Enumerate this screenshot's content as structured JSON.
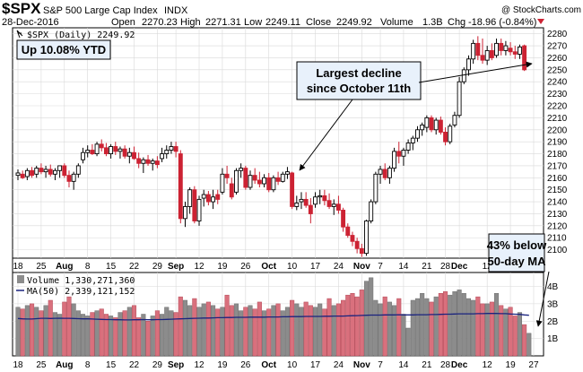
{
  "header": {
    "symbol": "$SPX",
    "name": "S&P 500 Large Cap Index",
    "exchange": "INDX",
    "date": "28-Dec-2016",
    "open_label": "Open",
    "open": "2270.23",
    "high_label": "High",
    "high": "2271.31",
    "low_label": "Low",
    "low": "2249.11",
    "close_label": "Close",
    "close": "2249.92",
    "volume_label": "Volume",
    "volume": "1.3B",
    "chg_label": "Chg",
    "chg": "-18.96 (-0.84%)",
    "credit": "@ StockCharts.com"
  },
  "legend": {
    "price": "$SPX (Daily) 2249.92",
    "volume": "Volume 1,330,271,360",
    "ma": "MA(50) 2,339,121,152"
  },
  "annotations": {
    "ytd": "Up 10.08% YTD",
    "decline_line1": "Largest decline",
    "decline_line2": "since October 11th",
    "below_line1": "43% below",
    "below_line2": "50-day MA"
  },
  "colors": {
    "up": "#000000",
    "down": "#cc2233",
    "vol_up": "#8c8c8c",
    "vol_down": "#d9707d",
    "ma": "#1a237e",
    "grid": "#d9d9d9",
    "marker": "#cc2233"
  },
  "chart_data": [
    {
      "type": "candlestick",
      "title": "$SPX (Daily) 2249.92",
      "ylim": [
        2093,
        2285
      ],
      "y_ticks": [
        2100,
        2110,
        2120,
        2130,
        2140,
        2150,
        2160,
        2170,
        2180,
        2190,
        2200,
        2210,
        2220,
        2230,
        2240,
        2250,
        2260,
        2270,
        2280
      ],
      "x_tick_labels": [
        {
          "label": "18",
          "i": 0
        },
        {
          "label": "25",
          "i": 5
        },
        {
          "label": "Aug",
          "i": 10,
          "bold": true
        },
        {
          "label": "8",
          "i": 15
        },
        {
          "label": "15",
          "i": 20
        },
        {
          "label": "22",
          "i": 25
        },
        {
          "label": "29",
          "i": 30
        },
        {
          "label": "Sep",
          "i": 34,
          "bold": true
        },
        {
          "label": "12",
          "i": 39
        },
        {
          "label": "19",
          "i": 44
        },
        {
          "label": "26",
          "i": 49
        },
        {
          "label": "Oct",
          "i": 54,
          "bold": true
        },
        {
          "label": "10",
          "i": 59
        },
        {
          "label": "17",
          "i": 64
        },
        {
          "label": "24",
          "i": 69
        },
        {
          "label": "Nov",
          "i": 74,
          "bold": true
        },
        {
          "label": "7",
          "i": 78
        },
        {
          "label": "14",
          "i": 83
        },
        {
          "label": "21",
          "i": 88
        },
        {
          "label": "28",
          "i": 92
        },
        {
          "label": "Dec",
          "i": 95,
          "bold": true
        },
        {
          "label": "12",
          "i": 101
        },
        {
          "label": "19",
          "i": 106
        },
        {
          "label": "27",
          "i": 111
        }
      ],
      "candles": [
        {
          "o": 2162,
          "h": 2167,
          "l": 2158,
          "c": 2164
        },
        {
          "o": 2163,
          "h": 2166,
          "l": 2159,
          "c": 2160
        },
        {
          "o": 2161,
          "h": 2168,
          "l": 2158,
          "c": 2166
        },
        {
          "o": 2166,
          "h": 2169,
          "l": 2160,
          "c": 2162
        },
        {
          "o": 2163,
          "h": 2170,
          "l": 2160,
          "c": 2168
        },
        {
          "o": 2168,
          "h": 2172,
          "l": 2163,
          "c": 2165
        },
        {
          "o": 2165,
          "h": 2170,
          "l": 2160,
          "c": 2167
        },
        {
          "o": 2167,
          "h": 2171,
          "l": 2161,
          "c": 2163
        },
        {
          "o": 2163,
          "h": 2168,
          "l": 2158,
          "c": 2166
        },
        {
          "o": 2166,
          "h": 2169,
          "l": 2160,
          "c": 2170
        },
        {
          "o": 2170,
          "h": 2172,
          "l": 2160,
          "c": 2162
        },
        {
          "o": 2162,
          "h": 2166,
          "l": 2152,
          "c": 2157
        },
        {
          "o": 2157,
          "h": 2165,
          "l": 2150,
          "c": 2163
        },
        {
          "o": 2163,
          "h": 2172,
          "l": 2160,
          "c": 2170
        },
        {
          "o": 2175,
          "h": 2185,
          "l": 2172,
          "c": 2181
        },
        {
          "o": 2181,
          "h": 2187,
          "l": 2177,
          "c": 2183
        },
        {
          "o": 2183,
          "h": 2188,
          "l": 2179,
          "c": 2180
        },
        {
          "o": 2180,
          "h": 2190,
          "l": 2178,
          "c": 2188
        },
        {
          "o": 2188,
          "h": 2192,
          "l": 2182,
          "c": 2185
        },
        {
          "o": 2185,
          "h": 2189,
          "l": 2178,
          "c": 2180
        },
        {
          "o": 2180,
          "h": 2188,
          "l": 2176,
          "c": 2186
        },
        {
          "o": 2186,
          "h": 2190,
          "l": 2179,
          "c": 2182
        },
        {
          "o": 2182,
          "h": 2186,
          "l": 2176,
          "c": 2184
        },
        {
          "o": 2184,
          "h": 2187,
          "l": 2176,
          "c": 2178
        },
        {
          "o": 2178,
          "h": 2185,
          "l": 2172,
          "c": 2181
        },
        {
          "o": 2181,
          "h": 2186,
          "l": 2175,
          "c": 2176
        },
        {
          "o": 2176,
          "h": 2181,
          "l": 2168,
          "c": 2172
        },
        {
          "o": 2172,
          "h": 2177,
          "l": 2164,
          "c": 2175
        },
        {
          "o": 2175,
          "h": 2179,
          "l": 2170,
          "c": 2172
        },
        {
          "o": 2172,
          "h": 2176,
          "l": 2166,
          "c": 2174
        },
        {
          "o": 2174,
          "h": 2178,
          "l": 2168,
          "c": 2171
        },
        {
          "o": 2176,
          "h": 2185,
          "l": 2173,
          "c": 2180
        },
        {
          "o": 2180,
          "h": 2187,
          "l": 2176,
          "c": 2183
        },
        {
          "o": 2183,
          "h": 2190,
          "l": 2180,
          "c": 2186
        },
        {
          "o": 2186,
          "h": 2190,
          "l": 2177,
          "c": 2182
        },
        {
          "o": 2180,
          "h": 2183,
          "l": 2122,
          "c": 2126
        },
        {
          "o": 2126,
          "h": 2140,
          "l": 2119,
          "c": 2136
        },
        {
          "o": 2136,
          "h": 2152,
          "l": 2130,
          "c": 2150
        },
        {
          "o": 2150,
          "h": 2153,
          "l": 2122,
          "c": 2124
        },
        {
          "o": 2124,
          "h": 2145,
          "l": 2120,
          "c": 2142
        },
        {
          "o": 2143,
          "h": 2150,
          "l": 2136,
          "c": 2146
        },
        {
          "o": 2146,
          "h": 2149,
          "l": 2137,
          "c": 2140
        },
        {
          "o": 2140,
          "h": 2150,
          "l": 2134,
          "c": 2144
        },
        {
          "o": 2146,
          "h": 2150,
          "l": 2138,
          "c": 2142
        },
        {
          "o": 2148,
          "h": 2168,
          "l": 2146,
          "c": 2163
        },
        {
          "o": 2163,
          "h": 2170,
          "l": 2155,
          "c": 2160
        },
        {
          "o": 2155,
          "h": 2160,
          "l": 2142,
          "c": 2144
        },
        {
          "o": 2148,
          "h": 2168,
          "l": 2146,
          "c": 2166
        },
        {
          "o": 2166,
          "h": 2172,
          "l": 2160,
          "c": 2168
        },
        {
          "o": 2168,
          "h": 2170,
          "l": 2150,
          "c": 2152
        },
        {
          "o": 2152,
          "h": 2166,
          "l": 2150,
          "c": 2162
        },
        {
          "o": 2162,
          "h": 2168,
          "l": 2155,
          "c": 2158
        },
        {
          "o": 2158,
          "h": 2165,
          "l": 2152,
          "c": 2155
        },
        {
          "o": 2155,
          "h": 2163,
          "l": 2152,
          "c": 2160
        },
        {
          "o": 2160,
          "h": 2164,
          "l": 2148,
          "c": 2150
        },
        {
          "o": 2150,
          "h": 2162,
          "l": 2148,
          "c": 2160
        },
        {
          "o": 2160,
          "h": 2165,
          "l": 2154,
          "c": 2157
        },
        {
          "o": 2157,
          "h": 2165,
          "l": 2156,
          "c": 2163
        },
        {
          "o": 2163,
          "h": 2169,
          "l": 2159,
          "c": 2165
        },
        {
          "o": 2164,
          "h": 2165,
          "l": 2134,
          "c": 2136
        },
        {
          "o": 2136,
          "h": 2145,
          "l": 2133,
          "c": 2139
        },
        {
          "o": 2140,
          "h": 2148,
          "l": 2134,
          "c": 2142
        },
        {
          "o": 2142,
          "h": 2148,
          "l": 2135,
          "c": 2137
        },
        {
          "o": 2137,
          "h": 2143,
          "l": 2122,
          "c": 2130
        },
        {
          "o": 2138,
          "h": 2148,
          "l": 2135,
          "c": 2144
        },
        {
          "o": 2144,
          "h": 2150,
          "l": 2138,
          "c": 2145
        },
        {
          "o": 2145,
          "h": 2150,
          "l": 2137,
          "c": 2141
        },
        {
          "o": 2141,
          "h": 2147,
          "l": 2134,
          "c": 2136
        },
        {
          "o": 2136,
          "h": 2142,
          "l": 2129,
          "c": 2138
        },
        {
          "o": 2138,
          "h": 2145,
          "l": 2130,
          "c": 2133
        },
        {
          "o": 2133,
          "h": 2135,
          "l": 2115,
          "c": 2119
        },
        {
          "o": 2119,
          "h": 2122,
          "l": 2110,
          "c": 2112
        },
        {
          "o": 2112,
          "h": 2115,
          "l": 2103,
          "c": 2107
        },
        {
          "o": 2107,
          "h": 2110,
          "l": 2097,
          "c": 2101
        },
        {
          "o": 2101,
          "h": 2105,
          "l": 2094,
          "c": 2097
        },
        {
          "o": 2097,
          "h": 2125,
          "l": 2095,
          "c": 2124
        },
        {
          "o": 2124,
          "h": 2142,
          "l": 2122,
          "c": 2140
        },
        {
          "o": 2140,
          "h": 2165,
          "l": 2138,
          "c": 2163
        },
        {
          "o": 2163,
          "h": 2170,
          "l": 2155,
          "c": 2167
        },
        {
          "o": 2167,
          "h": 2172,
          "l": 2158,
          "c": 2160
        },
        {
          "o": 2160,
          "h": 2170,
          "l": 2155,
          "c": 2168
        },
        {
          "o": 2168,
          "h": 2185,
          "l": 2165,
          "c": 2182
        },
        {
          "o": 2182,
          "h": 2190,
          "l": 2172,
          "c": 2178
        },
        {
          "o": 2178,
          "h": 2185,
          "l": 2170,
          "c": 2183
        },
        {
          "o": 2183,
          "h": 2192,
          "l": 2180,
          "c": 2189
        },
        {
          "o": 2189,
          "h": 2195,
          "l": 2183,
          "c": 2193
        },
        {
          "o": 2193,
          "h": 2203,
          "l": 2190,
          "c": 2200
        },
        {
          "o": 2200,
          "h": 2206,
          "l": 2195,
          "c": 2204
        },
        {
          "o": 2202,
          "h": 2212,
          "l": 2198,
          "c": 2210
        },
        {
          "o": 2210,
          "h": 2212,
          "l": 2198,
          "c": 2200
        },
        {
          "o": 2200,
          "h": 2210,
          "l": 2196,
          "c": 2208
        },
        {
          "o": 2208,
          "h": 2211,
          "l": 2196,
          "c": 2198
        },
        {
          "o": 2198,
          "h": 2202,
          "l": 2187,
          "c": 2190
        },
        {
          "o": 2190,
          "h": 2205,
          "l": 2188,
          "c": 2203
        },
        {
          "o": 2204,
          "h": 2215,
          "l": 2202,
          "c": 2212
        },
        {
          "o": 2212,
          "h": 2244,
          "l": 2210,
          "c": 2240
        },
        {
          "o": 2240,
          "h": 2252,
          "l": 2238,
          "c": 2250
        },
        {
          "o": 2250,
          "h": 2262,
          "l": 2245,
          "c": 2259
        },
        {
          "o": 2259,
          "h": 2275,
          "l": 2255,
          "c": 2272
        },
        {
          "o": 2272,
          "h": 2278,
          "l": 2258,
          "c": 2262
        },
        {
          "o": 2262,
          "h": 2276,
          "l": 2255,
          "c": 2258
        },
        {
          "o": 2258,
          "h": 2270,
          "l": 2254,
          "c": 2266
        },
        {
          "o": 2266,
          "h": 2272,
          "l": 2258,
          "c": 2260
        },
        {
          "o": 2262,
          "h": 2276,
          "l": 2260,
          "c": 2272
        },
        {
          "o": 2272,
          "h": 2276,
          "l": 2262,
          "c": 2266
        },
        {
          "o": 2266,
          "h": 2274,
          "l": 2262,
          "c": 2270
        },
        {
          "o": 2268,
          "h": 2273,
          "l": 2262,
          "c": 2265
        },
        {
          "o": 2265,
          "h": 2270,
          "l": 2259,
          "c": 2263
        },
        {
          "o": 2263,
          "h": 2271,
          "l": 2259,
          "c": 2269
        },
        {
          "o": 2270,
          "h": 2271,
          "l": 2249,
          "c": 2250
        }
      ]
    },
    {
      "type": "bar",
      "title": "Volume 1,330,271,360",
      "ylim": [
        0,
        4.8
      ],
      "y_ticks": [
        {
          "v": 1,
          "label": "1B"
        },
        {
          "v": 2,
          "label": "2B"
        },
        {
          "v": 3,
          "label": "3B"
        },
        {
          "v": 4,
          "label": "4B"
        }
      ],
      "unit": "B",
      "volumes": [
        2.8,
        2.7,
        2.9,
        3.0,
        2.8,
        2.6,
        2.9,
        3.2,
        2.5,
        2.4,
        3.1,
        3.4,
        3.0,
        2.6,
        2.4,
        2.3,
        2.5,
        2.6,
        2.7,
        2.4,
        2.3,
        2.2,
        2.5,
        2.6,
        2.8,
        2.9,
        2.2,
        2.4,
        2.0,
        2.3,
        2.6,
        2.4,
        2.8,
        2.6,
        2.5,
        3.4,
        3.2,
        2.9,
        3.3,
        2.8,
        3.0,
        3.1,
        2.9,
        2.7,
        2.8,
        3.5,
        2.9,
        3.0,
        2.6,
        2.8,
        2.9,
        2.7,
        3.1,
        2.6,
        2.7,
        2.9,
        3.0,
        2.6,
        2.8,
        3.2,
        3.0,
        2.8,
        3.1,
        2.9,
        2.8,
        3.0,
        2.7,
        3.3,
        2.9,
        3.0,
        3.2,
        3.5,
        3.6,
        3.4,
        3.8,
        4.3,
        4.5,
        3.2,
        3.0,
        3.4,
        3.1,
        2.9,
        3.3,
        2.4,
        1.6,
        3.2,
        3.3,
        3.6,
        3.3,
        3.1,
        3.4,
        3.6,
        3.7,
        3.5,
        3.7,
        3.8,
        3.6,
        3.3,
        3.2,
        3.4,
        3.0,
        3.0,
        3.1,
        3.6,
        2.9,
        2.7,
        2.8,
        2.3,
        2.5,
        1.8,
        1.3
      ],
      "ma_name": "MA(50) 2,339,121,152",
      "ma": [
        2.15,
        2.13,
        2.12,
        2.12,
        2.14,
        2.16,
        2.16,
        2.15,
        2.16,
        2.17,
        2.16,
        2.16,
        2.15,
        2.14,
        2.13,
        2.13,
        2.12,
        2.11,
        2.1,
        2.09,
        2.09,
        2.08,
        2.08,
        2.07,
        2.07,
        2.08,
        2.08,
        2.09,
        2.08,
        2.08,
        2.09,
        2.09,
        2.1,
        2.11,
        2.12,
        2.13,
        2.14,
        2.15,
        2.16,
        2.17,
        2.18,
        2.18,
        2.19,
        2.2,
        2.2,
        2.21,
        2.21,
        2.22,
        2.22,
        2.22,
        2.23,
        2.23,
        2.23,
        2.23,
        2.24,
        2.24,
        2.24,
        2.25,
        2.25,
        2.26,
        2.26,
        2.26,
        2.27,
        2.27,
        2.27,
        2.27,
        2.28,
        2.28,
        2.29,
        2.29,
        2.29,
        2.3,
        2.31,
        2.32,
        2.33,
        2.34,
        2.35,
        2.35,
        2.35,
        2.36,
        2.36,
        2.36,
        2.37,
        2.36,
        2.36,
        2.36,
        2.37,
        2.37,
        2.37,
        2.38,
        2.38,
        2.39,
        2.4,
        2.4,
        2.41,
        2.42,
        2.42,
        2.42,
        2.42,
        2.43,
        2.43,
        2.44,
        2.44,
        2.44,
        2.43,
        2.43,
        2.41,
        2.4,
        2.39,
        2.36,
        2.34
      ]
    }
  ]
}
